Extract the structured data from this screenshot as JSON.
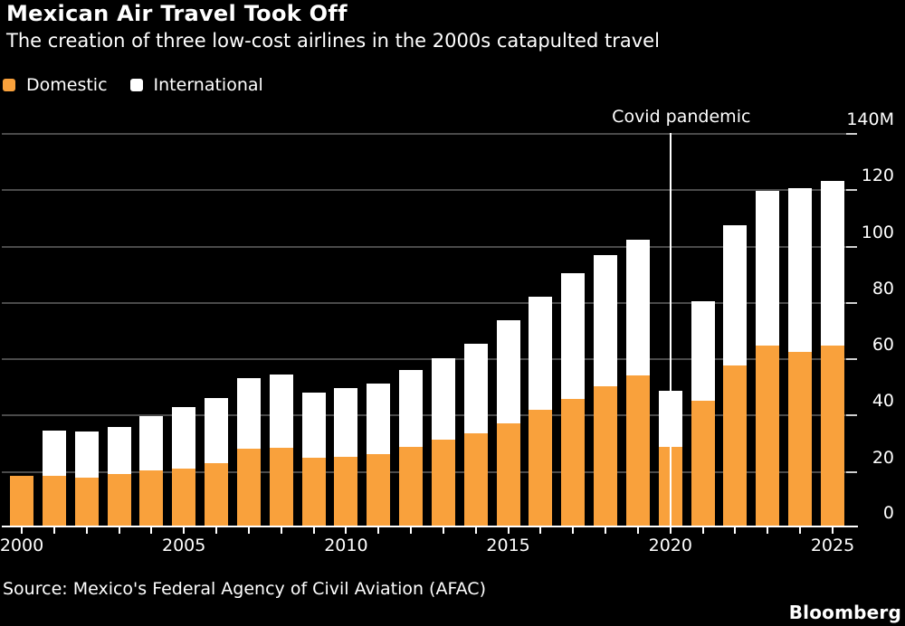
{
  "header": {
    "title": "Mexican Air Travel Took Off",
    "subtitle": "The creation of three low-cost airlines in the 2000s catapulted travel"
  },
  "legend": [
    {
      "id": "domestic",
      "label": "Domestic",
      "color": "#F9A13C"
    },
    {
      "id": "international",
      "label": "International",
      "color": "#FFFFFF"
    }
  ],
  "annotation": {
    "label": "Covid pandemic",
    "year": 2020
  },
  "source": "Source: Mexico's Federal Agency of Civil Aviation (AFAC)",
  "brand": "Bloomberg",
  "colors": {
    "background": "#000000",
    "domestic": "#F9A13C",
    "international": "#FFFFFF",
    "gridline": "#4a4a4a",
    "axis": "#FFFFFF",
    "text": "#FFFFFF"
  },
  "chart_data": {
    "type": "bar",
    "stacked": true,
    "unit": "millions of passengers",
    "title": "Mexican Air Travel Took Off",
    "xlabel": "",
    "ylabel": "",
    "ylim": [
      0,
      140
    ],
    "ytick_step": 20,
    "ytick_labels": [
      "0",
      "20",
      "40",
      "60",
      "80",
      "100",
      "120",
      "140M"
    ],
    "xtick_labels": [
      2000,
      2005,
      2010,
      2015,
      2020,
      2025
    ],
    "grid": true,
    "legend_position": "top-left",
    "categories": [
      2000,
      2001,
      2002,
      2003,
      2004,
      2005,
      2006,
      2007,
      2008,
      2009,
      2010,
      2011,
      2012,
      2013,
      2014,
      2015,
      2016,
      2017,
      2018,
      2019,
      2020,
      2021,
      2022,
      2023,
      2024,
      2025
    ],
    "series": [
      {
        "name": "Domestic",
        "color": "#F9A13C",
        "values": [
          18.2,
          18.4,
          17.7,
          19.0,
          20.3,
          20.8,
          22.9,
          27.8,
          28.3,
          24.6,
          25.2,
          26.1,
          28.7,
          31.3,
          33.4,
          36.9,
          41.7,
          45.5,
          50.2,
          54.0,
          28.7,
          44.8,
          57.6,
          64.4,
          62.3,
          64.4
        ]
      },
      {
        "name": "International",
        "color": "#FFFFFF",
        "values": [
          0,
          15.9,
          16.2,
          16.8,
          19.2,
          22.0,
          23.0,
          25.2,
          26.0,
          23.1,
          24.4,
          25.0,
          27.1,
          28.7,
          31.9,
          36.6,
          40.3,
          44.7,
          46.6,
          48.0,
          19.8,
          35.4,
          49.8,
          55.1,
          58.2,
          58.6
        ]
      }
    ],
    "annotations": [
      {
        "label": "Covid pandemic",
        "x": 2020,
        "type": "vertical-line"
      }
    ]
  }
}
